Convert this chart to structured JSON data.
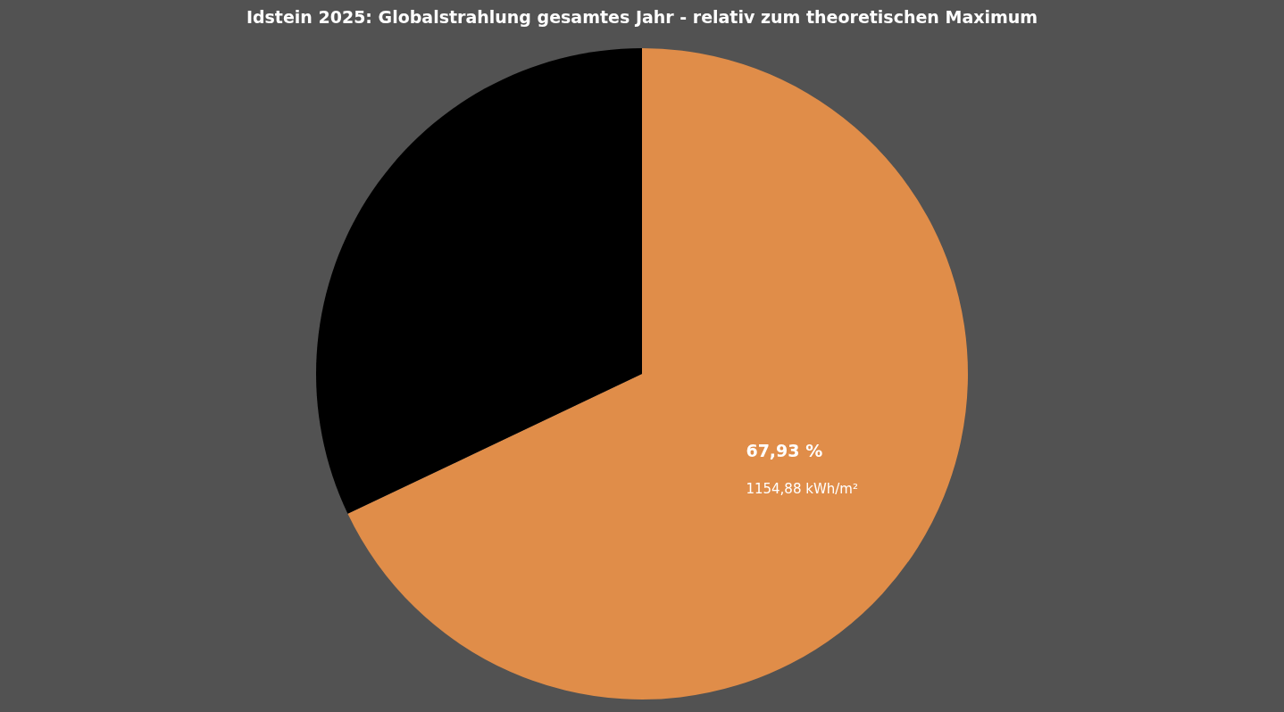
{
  "chart_data": {
    "type": "pie",
    "title": "Idstein 2025:  Globalstrahlung gesamtes Jahr - relativ zum theoretischen Maximum",
    "categories": [
      null,
      null
    ],
    "values": [
      67.93,
      32.07
    ],
    "colors": [
      "#e08d49",
      "#000000"
    ],
    "value_labels": [
      "67,93 %",
      null
    ],
    "annotations": [
      "1154,88 kWh/m²"
    ]
  }
}
